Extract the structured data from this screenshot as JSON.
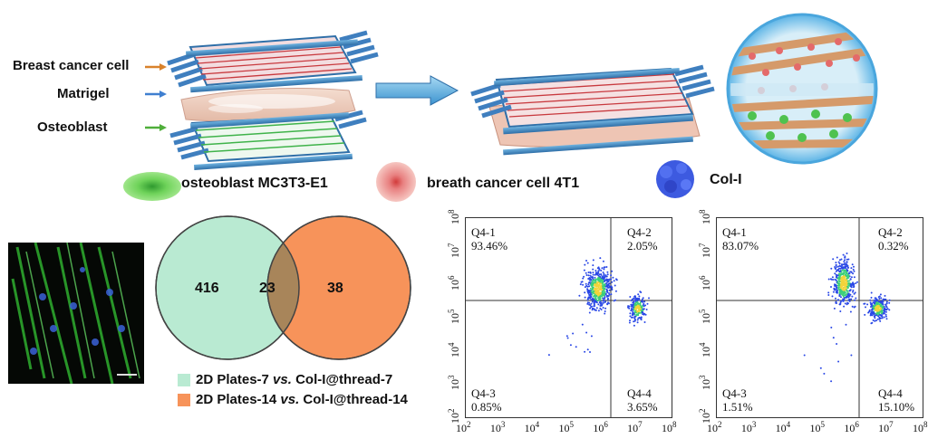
{
  "layers": {
    "breast_cancer_cell": "Breast cancer cell",
    "matrigel": "Matrigel",
    "osteoblast": "Osteoblast"
  },
  "cells": {
    "osteoblast": "osteoblast MC3T3-E1",
    "breast_cancer": "breath cancer cell 4T1",
    "col": "Col-I"
  },
  "venn": {
    "left_only": "416",
    "overlap": "23",
    "right_only": "38",
    "legend1_pre": "2D Plates-7 ",
    "legend1_vs": "vs.",
    "legend1_post": " Col-I@thread-7",
    "legend2_pre": "2D Plates-14 ",
    "legend2_vs": "vs.",
    "legend2_post": " Col-I@thread-14",
    "colors": {
      "left": "#b9ead2",
      "right": "#f7935a"
    }
  },
  "flow1": {
    "q1": {
      "name": "Q4-1",
      "pct": "93.46%"
    },
    "q2": {
      "name": "Q4-2",
      "pct": "2.05%"
    },
    "q3": {
      "name": "Q4-3",
      "pct": "0.85%"
    },
    "q4": {
      "name": "Q4-4",
      "pct": "3.65%"
    }
  },
  "flow2": {
    "q1": {
      "name": "Q4-1",
      "pct": "83.07%"
    },
    "q2": {
      "name": "Q4-2",
      "pct": "0.32%"
    },
    "q3": {
      "name": "Q4-3",
      "pct": "1.51%"
    },
    "q4": {
      "name": "Q4-4",
      "pct": "15.10%"
    }
  },
  "axis_base": "10",
  "axis_exponents": [
    "2",
    "3",
    "4",
    "5",
    "6",
    "7",
    "8"
  ]
}
